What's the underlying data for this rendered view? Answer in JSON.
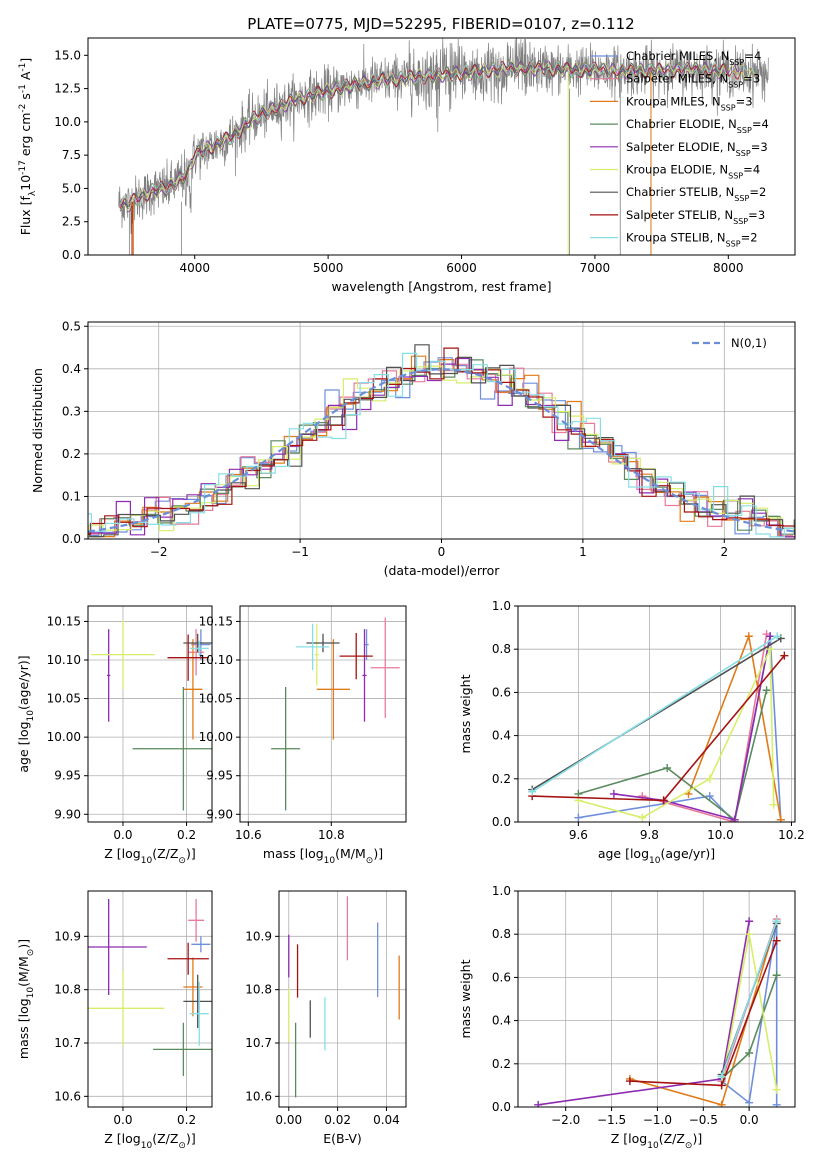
{
  "figure_title": "PLATE=0775, MJD=52295, FIBERID=0107, z=0.112",
  "colors": {
    "Chabrier MILES": "#6f8fdc",
    "Salpeter MILES": "#e87a9c",
    "Kroupa MILES": "#e07b18",
    "Chabrier ELODIE": "#5a8a5e",
    "Salpeter ELODIE": "#8e2bb0",
    "Kroupa ELODIE": "#d7ee6a",
    "Chabrier STELIB": "#505050",
    "Salpeter STELIB": "#a51212",
    "Kroupa STELIB": "#86dfe6",
    "data": "#808080",
    "normal_curve": "#6a8fd8"
  },
  "chart_data": [
    {
      "id": "spectrum",
      "type": "line",
      "xlabel": "wavelength [Angstrom, rest frame]",
      "ylabel": "Flux [f$_\\lambda$10$^{-17}$ erg cm$^{-2}$ s$^{-1}$ A$^{-1}$]",
      "xlim": [
        3200,
        8500
      ],
      "ylim": [
        0,
        16.3
      ],
      "xticks": [
        4000,
        5000,
        6000,
        7000,
        8000
      ],
      "yticks": [
        0.0,
        2.5,
        5.0,
        7.5,
        10.0,
        12.5,
        15.0
      ],
      "grid": false,
      "legend_position": "upper right",
      "continuum": {
        "x": [
          3430,
          3500,
          3600,
          3700,
          3800,
          3900,
          3950,
          4000,
          4100,
          4200,
          4300,
          4400,
          4500,
          4600,
          4800,
          5000,
          5200,
          5400,
          5600,
          5800,
          6000,
          6200,
          6400,
          6600,
          6800,
          7000,
          7200,
          7400,
          7600,
          7800,
          8000,
          8200,
          8300
        ],
        "y": [
          3.9,
          3.8,
          4.4,
          4.9,
          5.0,
          5.8,
          6.2,
          7.5,
          8.0,
          8.5,
          9.0,
          10.0,
          10.5,
          11.0,
          11.8,
          12.3,
          12.8,
          13.1,
          13.3,
          13.5,
          13.6,
          13.9,
          14.0,
          14.0,
          13.9,
          13.9,
          13.8,
          13.8,
          13.9,
          13.9,
          13.8,
          13.7,
          13.6
        ]
      },
      "series": [
        {
          "name": "Chabrier MILES",
          "nssp": "4"
        },
        {
          "name": "Salpeter MILES",
          "nssp": "3"
        },
        {
          "name": "Kroupa MILES",
          "nssp": "3"
        },
        {
          "name": "Chabrier ELODIE",
          "nssp": "4"
        },
        {
          "name": "Salpeter ELODIE",
          "nssp": "3"
        },
        {
          "name": "Kroupa ELODIE",
          "nssp": "4"
        },
        {
          "name": "Chabrier STELIB",
          "nssp": "2"
        },
        {
          "name": "Salpeter STELIB",
          "nssp": "3"
        },
        {
          "name": "Kroupa STELIB",
          "nssp": "2"
        }
      ]
    },
    {
      "id": "residuals",
      "type": "line",
      "xlabel": "(data-model)/error",
      "ylabel": "Normed distribution",
      "xlim": [
        -2.5,
        2.5
      ],
      "ylim": [
        0,
        0.51
      ],
      "xticks": [
        -2,
        -1,
        0,
        1,
        2
      ],
      "yticks": [
        0.0,
        0.1,
        0.2,
        0.3,
        0.4,
        0.5
      ],
      "grid": true,
      "legend_position": "upper right",
      "legend_label": "$\\mathcal{N}(0,1)$",
      "bin_width": 0.1,
      "description": "step histograms of residuals for the nine models, each close to a standard normal"
    },
    {
      "id": "age_vs_Z",
      "type": "scatter",
      "xlabel": "Z [log$_{10}$(Z/Z$_\\odot$)]",
      "ylabel": "age  [log$_{10}$(age/yr)]",
      "xlim": [
        -0.11,
        0.28
      ],
      "ylim": [
        9.89,
        10.17
      ],
      "xticks": [
        0.0,
        0.2
      ],
      "yticks": [
        9.9,
        9.95,
        10.0,
        10.05,
        10.1,
        10.15
      ],
      "grid": true,
      "points": [
        {
          "model": "Chabrier MILES",
          "x": 0.245,
          "xerr": 0.03,
          "y": 10.12,
          "yerr": 0.02
        },
        {
          "model": "Salpeter MILES",
          "x": 0.23,
          "xerr": 0.025,
          "y": 10.11,
          "yerr": 0.03
        },
        {
          "model": "Kroupa MILES",
          "x": 0.22,
          "xerr": 0.03,
          "y": 10.062,
          "yerr": 0.065
        },
        {
          "model": "Chabrier ELODIE",
          "x": 0.19,
          "xerr": 0.16,
          "y": 9.985,
          "yerr": 0.08
        },
        {
          "model": "Salpeter ELODIE",
          "x": -0.045,
          "xerr": 0.005,
          "y": 10.08,
          "yerr": 0.06
        },
        {
          "model": "Kroupa ELODIE",
          "x": 0.0,
          "xerr": 0.1,
          "y": 10.107,
          "yerr": 0.045
        },
        {
          "model": "Chabrier STELIB",
          "x": 0.235,
          "xerr": 0.045,
          "y": 10.122,
          "yerr": 0.012
        },
        {
          "model": "Salpeter STELIB",
          "x": 0.205,
          "xerr": 0.065,
          "y": 10.103,
          "yerr": 0.03
        },
        {
          "model": "Kroupa STELIB",
          "x": 0.24,
          "xerr": 0.03,
          "y": 10.115,
          "yerr": 0.01
        }
      ]
    },
    {
      "id": "age_vs_mass",
      "type": "scatter",
      "xlabel": "mass [log$_{10}$(M/M$_\\odot$)]",
      "ylabel": "",
      "xlim": [
        10.58,
        10.98
      ],
      "ylim": [
        9.89,
        10.17
      ],
      "xticks": [
        10.6,
        10.8
      ],
      "yticks": [
        9.9,
        9.95,
        10.0,
        10.05,
        10.1,
        10.15
      ],
      "grid": true,
      "points": [
        {
          "model": "Chabrier MILES",
          "x": 10.885,
          "xerr": 0.005,
          "y": 10.12,
          "yerr": 0.02
        },
        {
          "model": "Salpeter MILES",
          "x": 10.93,
          "xerr": 0.035,
          "y": 10.09,
          "yerr": 0.065
        },
        {
          "model": "Kroupa MILES",
          "x": 10.805,
          "xerr": 0.04,
          "y": 10.062,
          "yerr": 0.065
        },
        {
          "model": "Chabrier ELODIE",
          "x": 10.69,
          "xerr": 0.035,
          "y": 9.985,
          "yerr": 0.08
        },
        {
          "model": "Salpeter ELODIE",
          "x": 10.88,
          "xerr": 0.005,
          "y": 10.08,
          "yerr": 0.06
        },
        {
          "model": "Kroupa ELODIE",
          "x": 10.765,
          "xerr": 0.005,
          "y": 10.107,
          "yerr": 0.04
        },
        {
          "model": "Chabrier STELIB",
          "x": 10.78,
          "xerr": 0.04,
          "y": 10.122,
          "yerr": 0.012
        },
        {
          "model": "Salpeter STELIB",
          "x": 10.86,
          "xerr": 0.04,
          "y": 10.105,
          "yerr": 0.03
        },
        {
          "model": "Kroupa STELIB",
          "x": 10.755,
          "xerr": 0.04,
          "y": 10.117,
          "yerr": 0.03
        }
      ]
    },
    {
      "id": "weight_vs_age",
      "type": "line",
      "xlabel": "age  [log$_{10}$(age/yr)]",
      "ylabel": "mass weight",
      "xlim": [
        9.43,
        10.21
      ],
      "ylim": [
        0.0,
        1.0
      ],
      "xticks": [
        9.6,
        9.8,
        10.0,
        10.2
      ],
      "yticks": [
        0.0,
        0.2,
        0.4,
        0.6,
        0.8,
        1.0
      ],
      "grid": true,
      "series": [
        {
          "model": "Chabrier MILES",
          "x": [
            9.6,
            9.97,
            10.04,
            10.14,
            10.17
          ],
          "y": [
            0.02,
            0.12,
            0.0,
            0.86,
            0.01
          ]
        },
        {
          "model": "Salpeter MILES",
          "x": [
            9.78,
            10.04,
            10.13
          ],
          "y": [
            0.12,
            0.0,
            0.87
          ]
        },
        {
          "model": "Kroupa MILES",
          "x": [
            9.91,
            10.08,
            10.17
          ],
          "y": [
            0.13,
            0.86,
            0.01
          ]
        },
        {
          "model": "Chabrier ELODIE",
          "x": [
            9.6,
            9.85,
            10.04,
            10.13
          ],
          "y": [
            0.13,
            0.25,
            0.01,
            0.61
          ]
        },
        {
          "model": "Salpeter ELODIE",
          "x": [
            9.7,
            9.84,
            10.04,
            10.14
          ],
          "y": [
            0.13,
            0.1,
            0.01,
            0.86
          ]
        },
        {
          "model": "Kroupa ELODIE",
          "x": [
            9.6,
            9.78,
            9.97,
            10.14,
            10.15
          ],
          "y": [
            0.1,
            0.02,
            0.2,
            0.8,
            0.08
          ]
        },
        {
          "model": "Chabrier STELIB",
          "x": [
            9.47,
            10.17
          ],
          "y": [
            0.15,
            0.85
          ]
        },
        {
          "model": "Salpeter STELIB",
          "x": [
            9.47,
            9.84,
            10.18
          ],
          "y": [
            0.12,
            0.1,
            0.77
          ]
        },
        {
          "model": "Kroupa STELIB",
          "x": [
            9.47,
            10.16
          ],
          "y": [
            0.14,
            0.86
          ]
        }
      ]
    },
    {
      "id": "mass_vs_Z",
      "type": "scatter",
      "xlabel": "Z [log$_{10}$(Z/Z$_\\odot$)]",
      "ylabel": "mass [log$_{10}$(M/M$_\\odot$)]",
      "xlim": [
        -0.11,
        0.28
      ],
      "ylim": [
        10.58,
        10.985
      ],
      "xticks": [
        0.0,
        0.2
      ],
      "yticks": [
        10.6,
        10.7,
        10.8,
        10.9
      ],
      "grid": true,
      "points": [
        {
          "model": "Chabrier MILES",
          "x": 0.245,
          "xerr": 0.03,
          "y": 10.885,
          "yerr": 0.015
        },
        {
          "model": "Salpeter MILES",
          "x": 0.23,
          "xerr": 0.025,
          "y": 10.93,
          "yerr": 0.04
        },
        {
          "model": "Kroupa MILES",
          "x": 0.22,
          "xerr": 0.03,
          "y": 10.805,
          "yerr": 0.055
        },
        {
          "model": "Chabrier ELODIE",
          "x": 0.19,
          "xerr": 0.095,
          "y": 10.688,
          "yerr": 0.05
        },
        {
          "model": "Salpeter ELODIE",
          "x": -0.045,
          "xerr": 0.12,
          "y": 10.88,
          "yerr": 0.09
        },
        {
          "model": "Kroupa ELODIE",
          "x": 0.0,
          "xerr": 0.13,
          "y": 10.765,
          "yerr": 0.07
        },
        {
          "model": "Chabrier STELIB",
          "x": 0.235,
          "xerr": 0.045,
          "y": 10.778,
          "yerr": 0.05
        },
        {
          "model": "Salpeter STELIB",
          "x": 0.205,
          "xerr": 0.065,
          "y": 10.858,
          "yerr": 0.03
        },
        {
          "model": "Kroupa STELIB",
          "x": 0.24,
          "xerr": 0.03,
          "y": 10.755,
          "yerr": 0.06
        }
      ]
    },
    {
      "id": "mass_vs_ebv",
      "type": "scatter",
      "xlabel": "E(B-V)",
      "ylabel": "",
      "xlim": [
        -0.005,
        0.06
      ],
      "ylim": [
        10.58,
        10.985
      ],
      "xticks": [
        0.0,
        0.025,
        0.05
      ],
      "xticklabels": [
        "0.00",
        "0.02",
        "0.04"
      ],
      "yticks": [
        10.6,
        10.7,
        10.8,
        10.9
      ],
      "grid": true,
      "points": [
        {
          "model": "Chabrier MILES",
          "x": 0.0455,
          "y": 10.856,
          "yerr": 0.07
        },
        {
          "model": "Salpeter MILES",
          "x": 0.03,
          "y": 10.915,
          "yerr": 0.06
        },
        {
          "model": "Kroupa MILES",
          "x": 0.0565,
          "y": 10.804,
          "yerr": 0.06
        },
        {
          "model": "Chabrier ELODIE",
          "x": 0.0035,
          "y": 10.668,
          "yerr": 0.07
        },
        {
          "model": "Salpeter ELODIE",
          "x": 0.0,
          "y": 10.863,
          "yerr": 0.04
        },
        {
          "model": "Kroupa ELODIE",
          "x": 0.0,
          "y": 10.752,
          "yerr": 0.05
        },
        {
          "model": "Chabrier STELIB",
          "x": 0.011,
          "y": 10.745,
          "yerr": 0.035
        },
        {
          "model": "Salpeter STELIB",
          "x": 0.0045,
          "y": 10.835,
          "yerr": 0.05
        },
        {
          "model": "Kroupa STELIB",
          "x": 0.0185,
          "y": 10.736,
          "yerr": 0.05
        }
      ]
    },
    {
      "id": "weight_vs_Z",
      "type": "line",
      "xlabel": "Z [log$_{10}$(Z/Z$_\\odot$)]",
      "ylabel": "mass weight",
      "xlim": [
        -2.52,
        0.5
      ],
      "ylim": [
        0.0,
        1.0
      ],
      "xticks": [
        -2.0,
        -1.5,
        -1.0,
        -0.5,
        0.0
      ],
      "yticks": [
        0.0,
        0.2,
        0.4,
        0.6,
        0.8,
        1.0
      ],
      "grid": true,
      "series": [
        {
          "model": "Chabrier MILES",
          "x": [
            -0.3,
            0.0,
            0.3,
            0.3
          ],
          "y": [
            0.12,
            0.02,
            0.86,
            0.01
          ]
        },
        {
          "model": "Salpeter MILES",
          "x": [
            -0.3,
            0.3
          ],
          "y": [
            0.12,
            0.87
          ]
        },
        {
          "model": "Kroupa MILES",
          "x": [
            -1.3,
            -0.3,
            0.3
          ],
          "y": [
            0.13,
            0.01,
            0.86
          ]
        },
        {
          "model": "Chabrier ELODIE",
          "x": [
            -0.3,
            0.0,
            0.3
          ],
          "y": [
            0.13,
            0.25,
            0.61
          ]
        },
        {
          "model": "Salpeter ELODIE",
          "x": [
            -2.3,
            -0.3,
            0.0
          ],
          "y": [
            0.01,
            0.13,
            0.86
          ]
        },
        {
          "model": "Kroupa ELODIE",
          "x": [
            -0.3,
            0.0,
            0.3
          ],
          "y": [
            0.1,
            0.8,
            0.08
          ]
        },
        {
          "model": "Chabrier STELIB",
          "x": [
            -0.3,
            0.3
          ],
          "y": [
            0.15,
            0.85
          ]
        },
        {
          "model": "Salpeter STELIB",
          "x": [
            -1.3,
            -0.3,
            0.3
          ],
          "y": [
            0.12,
            0.1,
            0.77
          ]
        },
        {
          "model": "Kroupa STELIB",
          "x": [
            -0.3,
            0.3
          ],
          "y": [
            0.14,
            0.86
          ]
        }
      ]
    }
  ]
}
